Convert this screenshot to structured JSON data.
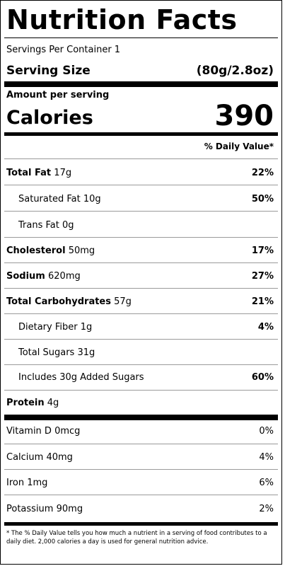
{
  "title": "Nutrition Facts",
  "servings_per_container": "Servings Per Container 1",
  "serving_size": {
    "label": "Serving Size",
    "value": "(80g/2.8oz)"
  },
  "amount_per_serving": "Amount per serving",
  "calories": {
    "label": "Calories",
    "value": "390"
  },
  "daily_value_header": "% Daily Value*",
  "nutrients": [
    {
      "name": "Total Fat",
      "amount": "17g",
      "dv": "22%"
    },
    {
      "name": "Saturated Fat",
      "amount": "10g",
      "dv": "50%"
    },
    {
      "name": "Trans Fat",
      "amount": "0g",
      "dv": ""
    },
    {
      "name": "Cholesterol",
      "amount": "50mg",
      "dv": "17%"
    },
    {
      "name": "Sodium",
      "amount": "620mg",
      "dv": "27%"
    },
    {
      "name": "Total Carbohydrates",
      "amount": "57g",
      "dv": "21%"
    },
    {
      "name": "Dietary Fiber",
      "amount": "1g",
      "dv": "4%"
    },
    {
      "name": "Total Sugars",
      "amount": "31g",
      "dv": ""
    },
    {
      "name": "Includes 30g Added Sugars",
      "amount": "",
      "dv": "60%"
    },
    {
      "name": "Protein",
      "amount": "4g",
      "dv": ""
    }
  ],
  "vitamins": [
    {
      "name": "Vitamin D",
      "amount": "0mcg",
      "dv": "0%"
    },
    {
      "name": "Calcium",
      "amount": "40mg",
      "dv": "4%"
    },
    {
      "name": "Iron",
      "amount": "1mg",
      "dv": "6%"
    },
    {
      "name": "Potassium",
      "amount": "90mg",
      "dv": "2%"
    }
  ],
  "footnote": "* The % Daily Value tells you how much a nutrient in a serving of food contributes to a daily diet. 2,000 calories a day is used for general nutrition advice."
}
